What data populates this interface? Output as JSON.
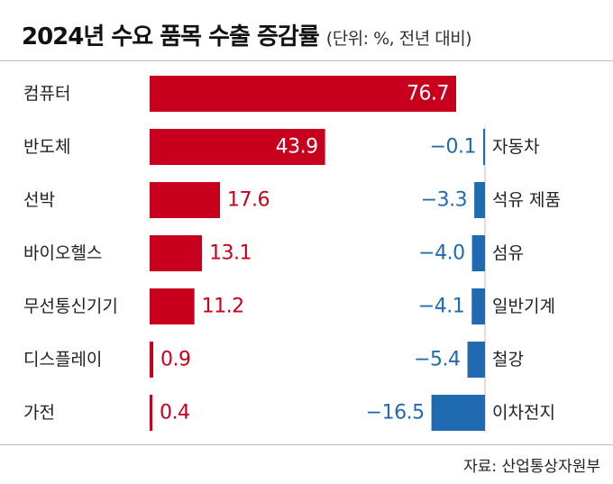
{
  "title": "2024년 수요 품목 수출 증감률",
  "subtitle": "(단위: %, 전년 대비)",
  "source": "자료: 산업통상자원부",
  "colors": {
    "positive": "#c8001e",
    "negative": "#1f6ab0",
    "divider": "#bdbdbd"
  },
  "chart_data": [
    {
      "type": "bar",
      "orientation": "horizontal",
      "categories": [
        "컴퓨터",
        "반도체",
        "선박",
        "바이오헬스",
        "무선통신기기",
        "디스플레이",
        "가전"
      ],
      "values": [
        76.7,
        43.9,
        17.6,
        13.1,
        11.2,
        0.9,
        0.4
      ],
      "labels": [
        "76.7",
        "43.9",
        "17.6",
        "13.1",
        "11.2",
        "0.9",
        "0.4"
      ]
    },
    {
      "type": "bar",
      "orientation": "horizontal",
      "categories": [
        "자동차",
        "석유 제품",
        "섬유",
        "일반기계",
        "철강",
        "이차전지"
      ],
      "values": [
        -0.1,
        -3.3,
        -4.0,
        -4.1,
        -5.4,
        -16.5
      ],
      "labels": [
        "−0.1",
        "−3.3",
        "−4.0",
        "−4.1",
        "−5.4",
        "−16.5"
      ]
    }
  ]
}
